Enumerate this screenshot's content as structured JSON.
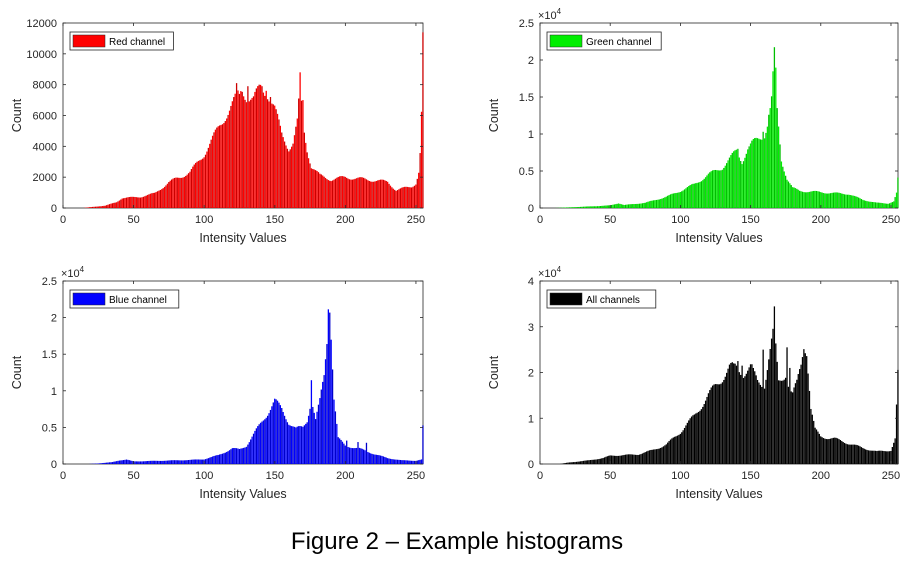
{
  "caption": "Figure 2 – Example histograms",
  "chart_data": [
    {
      "type": "bar",
      "legend": "Red channel",
      "color": "#ff0000",
      "xlabel": "Intensity Values",
      "ylabel": "Count",
      "xlim": [
        0,
        255
      ],
      "ylim": [
        0,
        12000
      ],
      "xticks": [
        0,
        50,
        100,
        150,
        200,
        250
      ],
      "yticks": [
        0,
        2000,
        4000,
        6000,
        8000,
        10000,
        12000
      ],
      "ytick_labels": [
        "0",
        "2000",
        "4000",
        "6000",
        "8000",
        "10000",
        "12000"
      ],
      "exponent": "",
      "profile": [
        [
          0,
          0
        ],
        [
          14,
          0
        ],
        [
          20,
          60
        ],
        [
          30,
          150
        ],
        [
          38,
          380
        ],
        [
          42,
          650
        ],
        [
          55,
          720
        ],
        [
          65,
          950
        ],
        [
          75,
          1650
        ],
        [
          80,
          1900
        ],
        [
          90,
          2300
        ],
        [
          100,
          3500
        ],
        [
          108,
          4800
        ],
        [
          115,
          6000
        ],
        [
          122,
          7000
        ],
        [
          127,
          7700
        ],
        [
          130,
          7300
        ],
        [
          135,
          7000
        ],
        [
          140,
          7800
        ],
        [
          145,
          7500
        ],
        [
          150,
          6400
        ],
        [
          155,
          4800
        ],
        [
          160,
          3900
        ],
        [
          163,
          4200
        ],
        [
          166,
          5500
        ],
        [
          168,
          7900
        ],
        [
          170,
          5500
        ],
        [
          173,
          3800
        ],
        [
          176,
          2700
        ],
        [
          182,
          2100
        ],
        [
          190,
          1850
        ],
        [
          200,
          2000
        ],
        [
          210,
          1900
        ],
        [
          220,
          1800
        ],
        [
          230,
          1700
        ],
        [
          236,
          1150
        ],
        [
          242,
          1300
        ],
        [
          247,
          1400
        ],
        [
          250,
          1600
        ],
        [
          252,
          2300
        ],
        [
          253,
          3500
        ],
        [
          254,
          6000
        ],
        [
          255,
          10800
        ]
      ],
      "peaks": [
        [
          123,
          8100
        ],
        [
          125,
          7400
        ],
        [
          131,
          7900
        ],
        [
          139,
          8000
        ],
        [
          141,
          7900
        ],
        [
          144,
          7600
        ],
        [
          147,
          7200
        ],
        [
          168,
          8800
        ],
        [
          170,
          7000
        ]
      ]
    },
    {
      "type": "bar",
      "legend": "Green channel",
      "color": "#00ee00",
      "xlabel": "Intensity Values",
      "ylabel": "Count",
      "xlim": [
        0,
        255
      ],
      "ylim": [
        0,
        25000
      ],
      "xticks": [
        0,
        50,
        100,
        150,
        200,
        250
      ],
      "yticks": [
        0,
        5000,
        10000,
        15000,
        20000,
        25000
      ],
      "ytick_labels": [
        "0",
        "0.5",
        "1",
        "1.5",
        "2",
        "2.5"
      ],
      "exponent": "×10",
      "exponent_power": "4",
      "profile": [
        [
          0,
          0
        ],
        [
          10,
          0
        ],
        [
          20,
          80
        ],
        [
          40,
          250
        ],
        [
          50,
          350
        ],
        [
          56,
          650
        ],
        [
          60,
          400
        ],
        [
          75,
          700
        ],
        [
          90,
          1500
        ],
        [
          100,
          2300
        ],
        [
          110,
          3200
        ],
        [
          120,
          4500
        ],
        [
          130,
          5500
        ],
        [
          136,
          6800
        ],
        [
          140,
          7700
        ],
        [
          144,
          6300
        ],
        [
          148,
          8000
        ],
        [
          152,
          8800
        ],
        [
          156,
          9400
        ],
        [
          160,
          10000
        ],
        [
          163,
          12000
        ],
        [
          165,
          14500
        ],
        [
          166,
          17500
        ],
        [
          167,
          20500
        ],
        [
          168,
          18000
        ],
        [
          169,
          13000
        ],
        [
          172,
          6500
        ],
        [
          176,
          4000
        ],
        [
          180,
          2700
        ],
        [
          185,
          2300
        ],
        [
          195,
          2200
        ],
        [
          210,
          2000
        ],
        [
          220,
          1900
        ],
        [
          230,
          1100
        ],
        [
          240,
          700
        ],
        [
          248,
          600
        ],
        [
          252,
          900
        ],
        [
          254,
          2000
        ],
        [
          255,
          3900
        ]
      ],
      "peaks": [
        [
          141,
          8000
        ],
        [
          151,
          9100
        ],
        [
          159,
          10300
        ],
        [
          163,
          12600
        ]
      ]
    },
    {
      "type": "bar",
      "legend": "Blue channel",
      "color": "#0000ff",
      "xlabel": "Intensity Values",
      "ylabel": "Count",
      "xlim": [
        0,
        255
      ],
      "ylim": [
        0,
        25000
      ],
      "xticks": [
        0,
        50,
        100,
        150,
        200,
        250
      ],
      "yticks": [
        0,
        5000,
        10000,
        15000,
        20000,
        25000
      ],
      "ytick_labels": [
        "0",
        "0.5",
        "1",
        "1.5",
        "2",
        "2.5"
      ],
      "exponent": "×10",
      "exponent_power": "4",
      "profile": [
        [
          0,
          0
        ],
        [
          18,
          0
        ],
        [
          25,
          80
        ],
        [
          35,
          250
        ],
        [
          40,
          500
        ],
        [
          45,
          600
        ],
        [
          50,
          350
        ],
        [
          70,
          450
        ],
        [
          90,
          550
        ],
        [
          100,
          650
        ],
        [
          110,
          1200
        ],
        [
          120,
          2100
        ],
        [
          125,
          2000
        ],
        [
          130,
          2500
        ],
        [
          135,
          4000
        ],
        [
          140,
          5500
        ],
        [
          145,
          7000
        ],
        [
          150,
          8600
        ],
        [
          155,
          7500
        ],
        [
          160,
          5700
        ],
        [
          165,
          4800
        ],
        [
          170,
          5000
        ],
        [
          173,
          6000
        ],
        [
          175,
          8000
        ],
        [
          176,
          12000
        ],
        [
          177,
          8000
        ],
        [
          179,
          6000
        ],
        [
          182,
          8500
        ],
        [
          185,
          12000
        ],
        [
          187,
          17000
        ],
        [
          188,
          22300
        ],
        [
          189,
          22000
        ],
        [
          190,
          18000
        ],
        [
          192,
          9000
        ],
        [
          195,
          3500
        ],
        [
          200,
          2500
        ],
        [
          210,
          2100
        ],
        [
          220,
          1400
        ],
        [
          230,
          800
        ],
        [
          240,
          500
        ],
        [
          250,
          450
        ],
        [
          254,
          600
        ],
        [
          255,
          5000
        ]
      ],
      "peaks": [
        [
          201,
          3200
        ],
        [
          209,
          3000
        ],
        [
          215,
          2900
        ]
      ]
    },
    {
      "type": "bar",
      "legend": "All channels",
      "color": "#000000",
      "xlabel": "Intensity Values",
      "ylabel": "Count",
      "xlim": [
        0,
        255
      ],
      "ylim": [
        0,
        40000
      ],
      "xticks": [
        0,
        50,
        100,
        150,
        200,
        250
      ],
      "yticks": [
        0,
        10000,
        20000,
        30000,
        40000
      ],
      "ytick_labels": [
        "0",
        "1",
        "2",
        "3",
        "4"
      ],
      "exponent": "×10",
      "exponent_power": "4",
      "profile": [
        [
          0,
          0
        ],
        [
          14,
          0
        ],
        [
          20,
          300
        ],
        [
          35,
          800
        ],
        [
          45,
          1300
        ],
        [
          50,
          1800
        ],
        [
          70,
          2100
        ],
        [
          80,
          3000
        ],
        [
          90,
          4200
        ],
        [
          100,
          7000
        ],
        [
          110,
          10500
        ],
        [
          120,
          15000
        ],
        [
          130,
          19000
        ],
        [
          135,
          21000
        ],
        [
          140,
          21000
        ],
        [
          145,
          20000
        ],
        [
          150,
          21000
        ],
        [
          155,
          18000
        ],
        [
          160,
          17500
        ],
        [
          163,
          23000
        ],
        [
          166,
          28000
        ],
        [
          167,
          32500
        ],
        [
          168,
          25000
        ],
        [
          170,
          18000
        ],
        [
          175,
          20000
        ],
        [
          178,
          16000
        ],
        [
          180,
          15000
        ],
        [
          183,
          17500
        ],
        [
          186,
          22000
        ],
        [
          188,
          26500
        ],
        [
          190,
          25000
        ],
        [
          193,
          12000
        ],
        [
          196,
          7500
        ],
        [
          200,
          6000
        ],
        [
          210,
          5500
        ],
        [
          220,
          4500
        ],
        [
          230,
          3500
        ],
        [
          240,
          2700
        ],
        [
          250,
          3000
        ],
        [
          253,
          5500
        ],
        [
          255,
          19500
        ]
      ],
      "peaks": [
        [
          138,
          22000
        ],
        [
          141,
          22500
        ],
        [
          144,
          21500
        ],
        [
          151,
          21800
        ],
        [
          159,
          25000
        ],
        [
          176,
          25500
        ],
        [
          178,
          21000
        ]
      ]
    }
  ]
}
